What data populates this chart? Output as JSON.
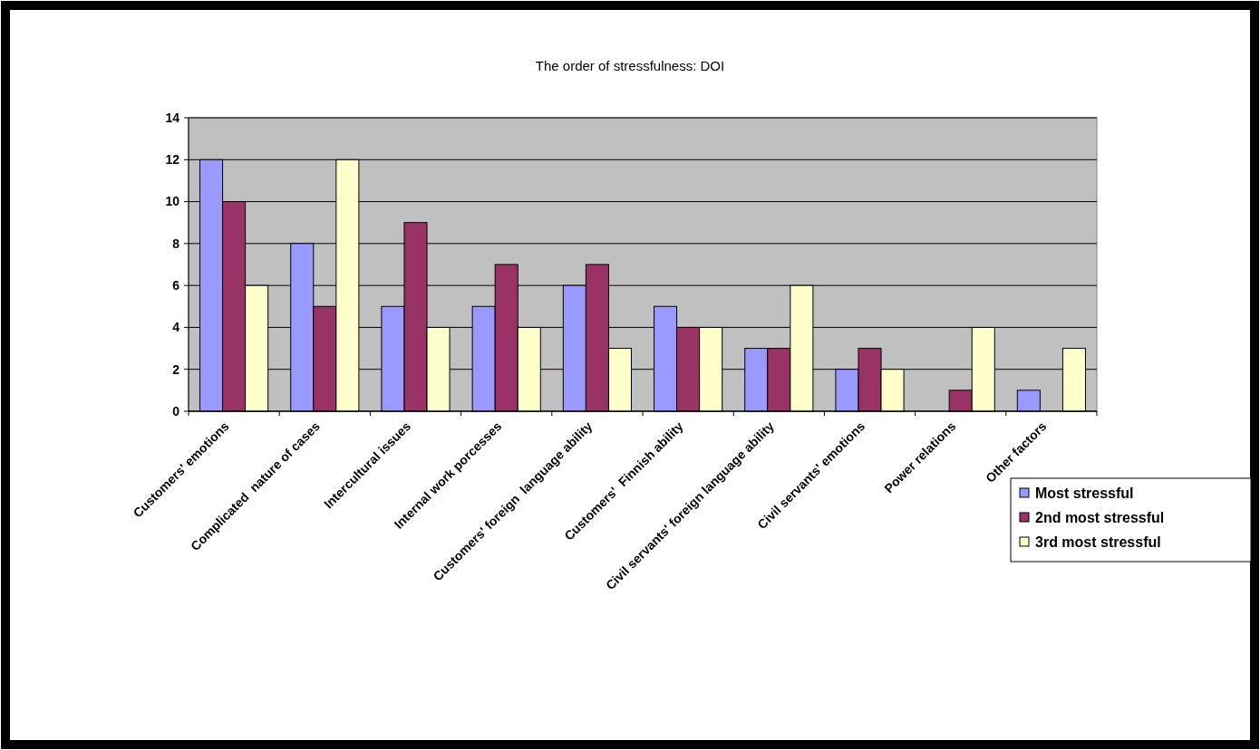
{
  "chart_data": {
    "type": "bar",
    "title": "The order of stressfulness: DOI",
    "categories": [
      "Customers' emotions",
      "Complicated  nature of cases",
      "Intercultural issues",
      "Internal work porcesses",
      "Customers' foreign  language ability",
      "Customers'  Finnish ability",
      "Civil servants' foreign language ability",
      "Civil servants' emotions",
      "Power relations",
      "Other factors"
    ],
    "series": [
      {
        "name": "Most stressful",
        "color": "#9999ff",
        "values": [
          12,
          8,
          5,
          5,
          6,
          5,
          3,
          2,
          0,
          1
        ]
      },
      {
        "name": "2nd most stressful",
        "color": "#993366",
        "values": [
          10,
          5,
          9,
          7,
          7,
          4,
          3,
          3,
          1,
          0
        ]
      },
      {
        "name": "3rd most stressful",
        "color": "#ffffcc",
        "values": [
          6,
          12,
          4,
          4,
          3,
          4,
          6,
          2,
          4,
          3
        ]
      }
    ],
    "ylim": [
      0,
      14
    ],
    "yticks": [
      0,
      2,
      4,
      6,
      8,
      10,
      12,
      14
    ],
    "grid": "y",
    "legend": "right"
  }
}
